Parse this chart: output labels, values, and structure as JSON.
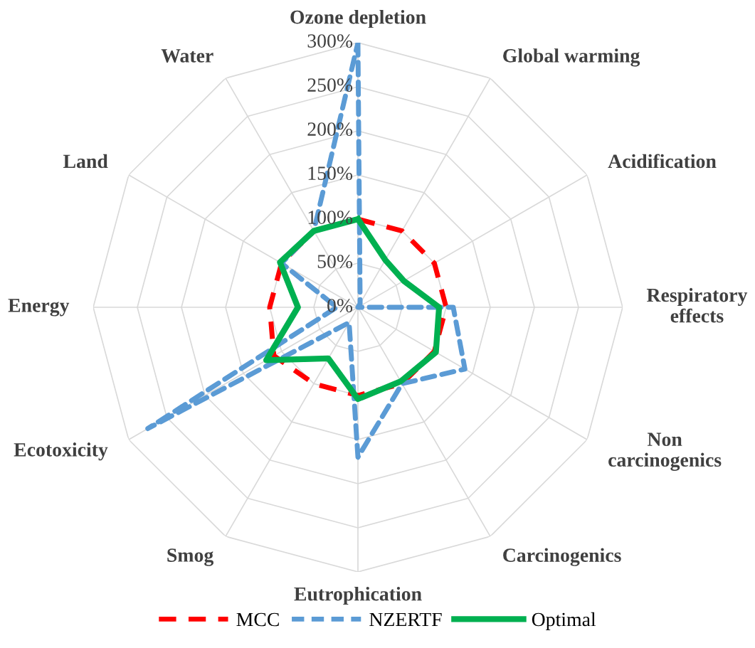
{
  "chart_data": {
    "type": "radar",
    "categories": [
      "Ozone depletion",
      "Global warming",
      "Acidification",
      "Respiratory\neffects",
      "Non\ncarcinogenics",
      "Carcinogenics",
      "Eutrophication",
      "Smog",
      "Ecotoxicity",
      "Energy",
      "Land",
      "Water"
    ],
    "series": [
      {
        "name": "MCC",
        "color": "#ff0000",
        "line_style": "dashed",
        "values": [
          100,
          100,
          100,
          100,
          100,
          100,
          100,
          100,
          110,
          100,
          100,
          100
        ]
      },
      {
        "name": "NZERTF",
        "color": "#5b9bd5",
        "line_style": "dashed",
        "values": [
          300,
          5,
          0,
          108,
          140,
          100,
          170,
          20,
          275,
          24,
          100,
          100
        ]
      },
      {
        "name": "Optimal",
        "color": "#00b050",
        "line_style": "solid",
        "values": [
          100,
          62,
          60,
          92,
          102,
          97,
          104,
          67,
          120,
          68,
          102,
          100
        ]
      }
    ],
    "ylim": [
      0,
      300
    ],
    "yticks": [
      {
        "value": 0,
        "label": "0%"
      },
      {
        "value": 50,
        "label": "50%"
      },
      {
        "value": 100,
        "label": "100%"
      },
      {
        "value": 150,
        "label": "150%"
      },
      {
        "value": 200,
        "label": "200%"
      },
      {
        "value": 250,
        "label": "250%"
      },
      {
        "value": 300,
        "label": "300%"
      }
    ],
    "grid": true,
    "legend": "bottom"
  }
}
